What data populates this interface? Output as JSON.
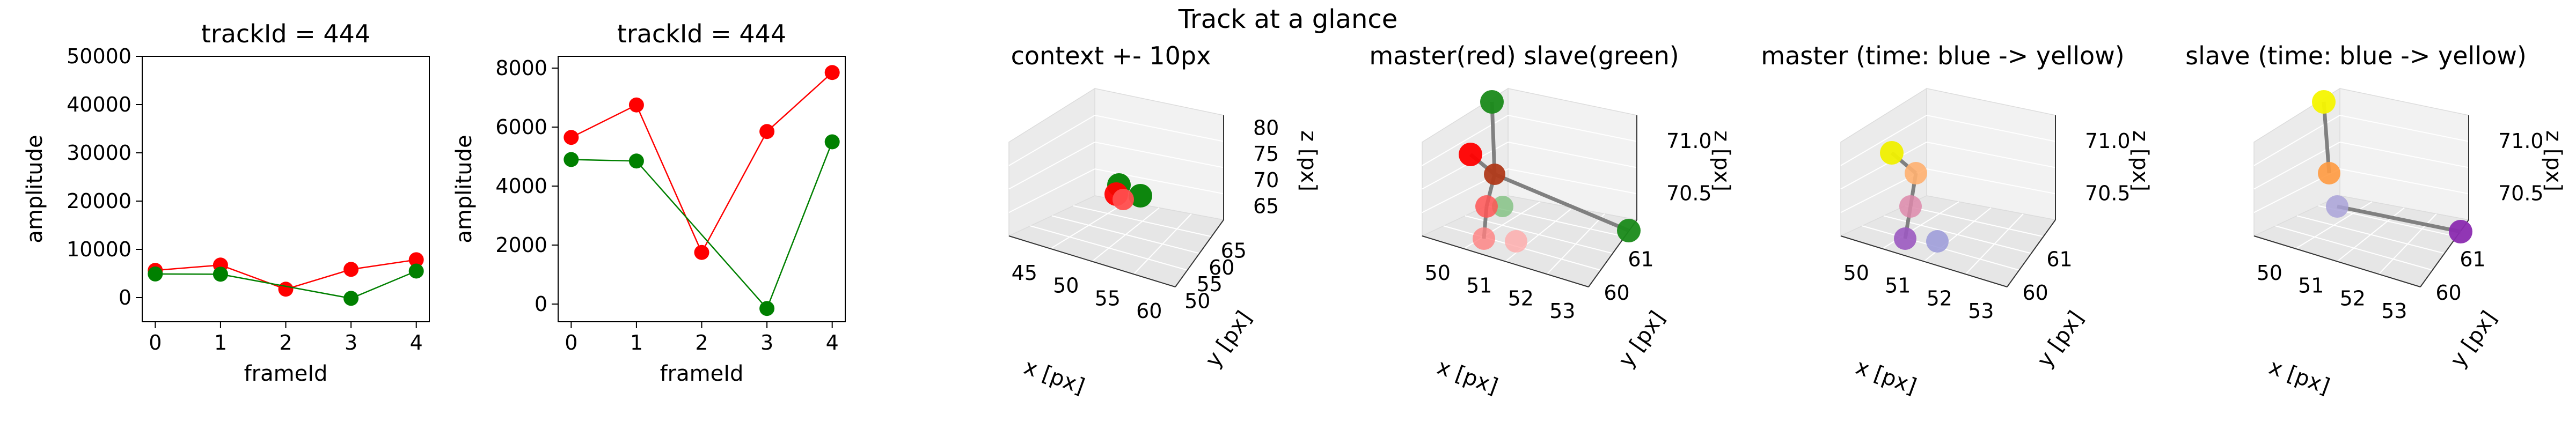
{
  "figure": {
    "suptitle": "Track at a glance"
  },
  "chart_data": [
    {
      "type": "line",
      "title": "trackId = 444",
      "xlabel": "frameId",
      "ylabel": "amplitude",
      "xlim": [
        -0.2,
        4.2
      ],
      "ylim": [
        -5000,
        50000
      ],
      "xticks": [
        0,
        1,
        2,
        3,
        4
      ],
      "yticks": [
        0,
        10000,
        20000,
        30000,
        40000,
        50000
      ],
      "series": [
        {
          "color": "#ff0000",
          "x": [
            0,
            1,
            2,
            3,
            4
          ],
          "y": [
            5650,
            6750,
            1750,
            5850,
            7850
          ]
        },
        {
          "color": "#008000",
          "x": [
            0,
            1,
            3,
            4
          ],
          "y": [
            4900,
            4850,
            -150,
            5500
          ]
        }
      ]
    },
    {
      "type": "line",
      "title": "trackId = 444",
      "xlabel": "frameId",
      "ylabel": "amplitude",
      "xlim": [
        -0.2,
        4.2
      ],
      "ylim": [
        -600,
        8400
      ],
      "xticks": [
        0,
        1,
        2,
        3,
        4
      ],
      "yticks": [
        0,
        2000,
        4000,
        6000,
        8000
      ],
      "series": [
        {
          "color": "#ff0000",
          "x": [
            0,
            1,
            2,
            3,
            4
          ],
          "y": [
            5650,
            6750,
            1750,
            5850,
            7850
          ]
        },
        {
          "color": "#008000",
          "x": [
            0,
            1,
            3,
            4
          ],
          "y": [
            4900,
            4850,
            -150,
            5500
          ]
        }
      ]
    },
    {
      "type": "scatter3d",
      "title": "context +- 10px",
      "xlabel": "x [px]",
      "ylabel": "y [px]",
      "zlabel": "z [px]",
      "xticks": [
        "45",
        "50",
        "55",
        "60"
      ],
      "yticks": [
        "50",
        "55",
        "60",
        "65"
      ],
      "zticks": [
        "65",
        "70",
        "75",
        "80"
      ],
      "points": [
        {
          "x": 50,
          "y": 60,
          "z": 70,
          "color": "#ff0000"
        },
        {
          "x": 51,
          "y": 60,
          "z": 70.5,
          "color": "#ff0000"
        },
        {
          "x": 52,
          "y": 61,
          "z": 71,
          "color": "#008000"
        },
        {
          "x": 53,
          "y": 61,
          "z": 70.5,
          "color": "#008000"
        }
      ]
    },
    {
      "type": "scatter3d",
      "title": "master(red) slave(green)",
      "xlabel": "x [px]",
      "ylabel": "y [px]",
      "zlabel": "z [px]",
      "xticks": [
        "50",
        "51",
        "52",
        "53"
      ],
      "yticks": [
        "60",
        "61"
      ],
      "zticks": [
        "70.5",
        "71.0"
      ]
    },
    {
      "type": "scatter3d",
      "title": "master (time: blue -> yellow)",
      "xlabel": "x [px]",
      "ylabel": "y [px]",
      "zlabel": "z [px]",
      "xticks": [
        "50",
        "51",
        "52",
        "53"
      ],
      "yticks": [
        "60",
        "61"
      ],
      "zticks": [
        "70.5",
        "71.0"
      ]
    },
    {
      "type": "scatter3d",
      "title": "slave (time: blue -> yellow)",
      "xlabel": "x [px]",
      "ylabel": "y [px]",
      "zlabel": "z [px]",
      "xticks": [
        "50",
        "51",
        "52",
        "53"
      ],
      "yticks": [
        "60",
        "61"
      ],
      "zticks": [
        "70.5",
        "71.0"
      ]
    }
  ]
}
